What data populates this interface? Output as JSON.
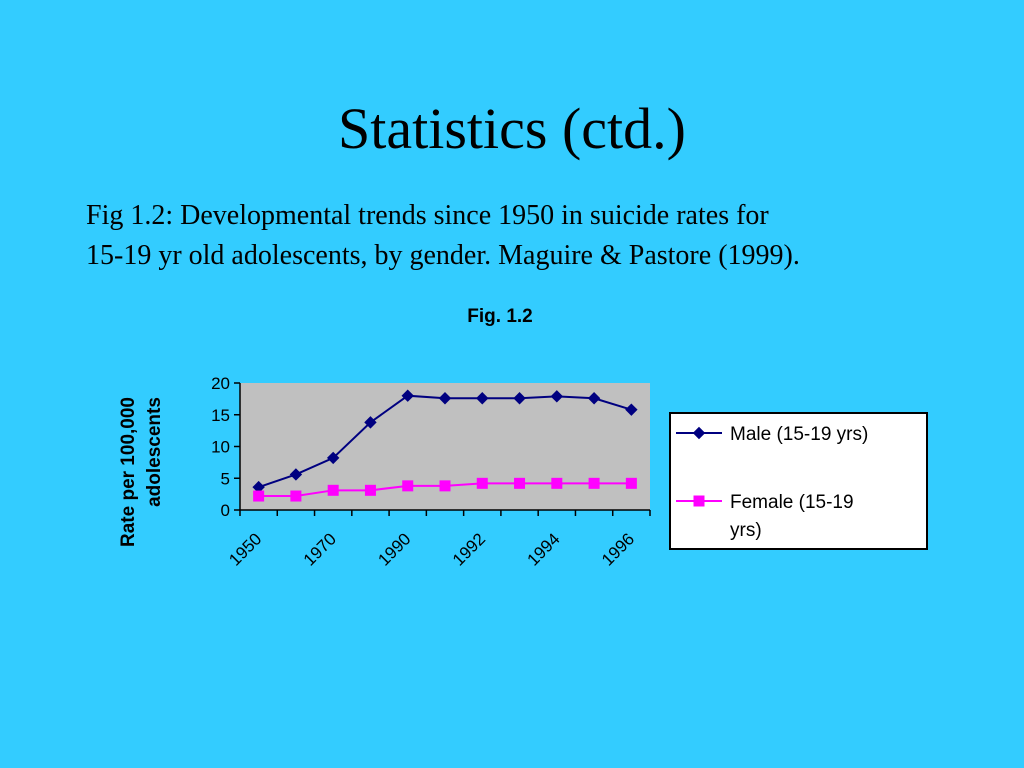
{
  "slide": {
    "title": "Statistics (ctd.)",
    "caption_line1": "Fig 1.2: Developmental trends since 1950 in suicide rates for",
    "caption_line2": "15-19 yr old adolescents, by gender. Maguire & Pastore (1999)."
  },
  "chart_data": {
    "type": "line",
    "title": "Fig. 1.2",
    "xlabel": "",
    "ylabel": "Rate per 100,000 adolescents",
    "ylim": [
      0,
      20
    ],
    "yticks": [
      0,
      5,
      10,
      15,
      20
    ],
    "categories": [
      "1950",
      "1960",
      "1970",
      "1980",
      "1990",
      "1991",
      "1992",
      "1993",
      "1994",
      "1995",
      "1996"
    ],
    "tick_labels_shown": [
      "1950",
      "1970",
      "1990",
      "1992",
      "1994",
      "1996"
    ],
    "series": [
      {
        "name": "Male (15-19 yrs)",
        "color": "#000080",
        "marker": "diamond",
        "values": [
          3.6,
          5.6,
          8.2,
          13.8,
          18.0,
          17.6,
          17.6,
          17.6,
          17.9,
          17.6,
          15.8
        ]
      },
      {
        "name": "Female (15-19 yrs)",
        "color": "#ff00ff",
        "marker": "square",
        "values": [
          2.2,
          2.2,
          3.1,
          3.1,
          3.8,
          3.8,
          4.2,
          4.2,
          4.2,
          4.2,
          4.2
        ]
      }
    ],
    "legend_position": "right",
    "grid": false,
    "plot_background": "#c0c0c0"
  }
}
